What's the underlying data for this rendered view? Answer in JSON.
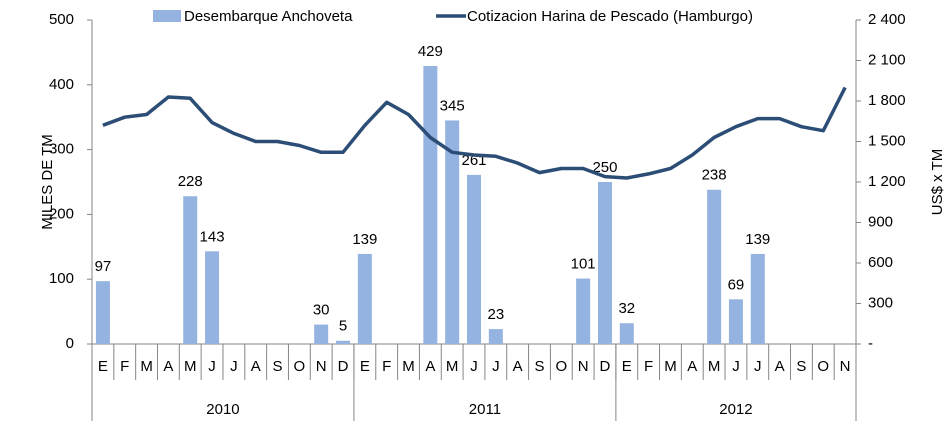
{
  "chart_data": {
    "type": "bar_line",
    "categories": [
      "E",
      "F",
      "M",
      "A",
      "M",
      "J",
      "J",
      "A",
      "S",
      "O",
      "N",
      "D",
      "E",
      "F",
      "M",
      "A",
      "M",
      "J",
      "J",
      "A",
      "S",
      "O",
      "N",
      "D",
      "E",
      "F",
      "M",
      "A",
      "M",
      "J",
      "J",
      "A",
      "S",
      "O",
      "N"
    ],
    "years": [
      "2010",
      "2011",
      "2012"
    ],
    "ylabel": "MILES DE TM",
    "y2label": "US$ x TM",
    "ylim": [
      0,
      500
    ],
    "yticks": [
      0,
      100,
      200,
      300,
      400,
      500
    ],
    "y2lim": [
      0,
      2400
    ],
    "y2ticks": [
      {
        "value": 0,
        "label": "-"
      },
      300,
      600,
      900,
      {
        "value": 1200,
        "label": "1 200"
      },
      {
        "value": 1500,
        "label": "1 500"
      },
      {
        "value": 1800,
        "label": "1 800"
      },
      {
        "value": 2100,
        "label": "2 100"
      },
      {
        "value": 2400,
        "label": "2 400"
      }
    ],
    "series": [
      {
        "name": "Desembarque Anchoveta",
        "type": "bar",
        "color": "#95b3e0",
        "values": [
          97,
          null,
          null,
          null,
          228,
          143,
          null,
          null,
          null,
          null,
          30,
          5,
          139,
          null,
          null,
          429,
          345,
          261,
          23,
          null,
          null,
          null,
          101,
          250,
          32,
          null,
          null,
          null,
          238,
          69,
          139,
          null,
          null,
          null,
          null
        ]
      },
      {
        "name": "Cotizacion Harina de Pescado (Hamburgo)",
        "type": "line",
        "axis": "y2",
        "color": "#2c4d75",
        "values": [
          1620,
          1680,
          1700,
          1830,
          1820,
          1640,
          1560,
          1500,
          1500,
          1470,
          1420,
          1420,
          1620,
          1790,
          1700,
          1530,
          1420,
          1400,
          1390,
          1340,
          1270,
          1300,
          1300,
          1240,
          1230,
          1260,
          1300,
          1400,
          1530,
          1610,
          1670,
          1670,
          1610,
          1580,
          1900
        ]
      }
    ]
  }
}
